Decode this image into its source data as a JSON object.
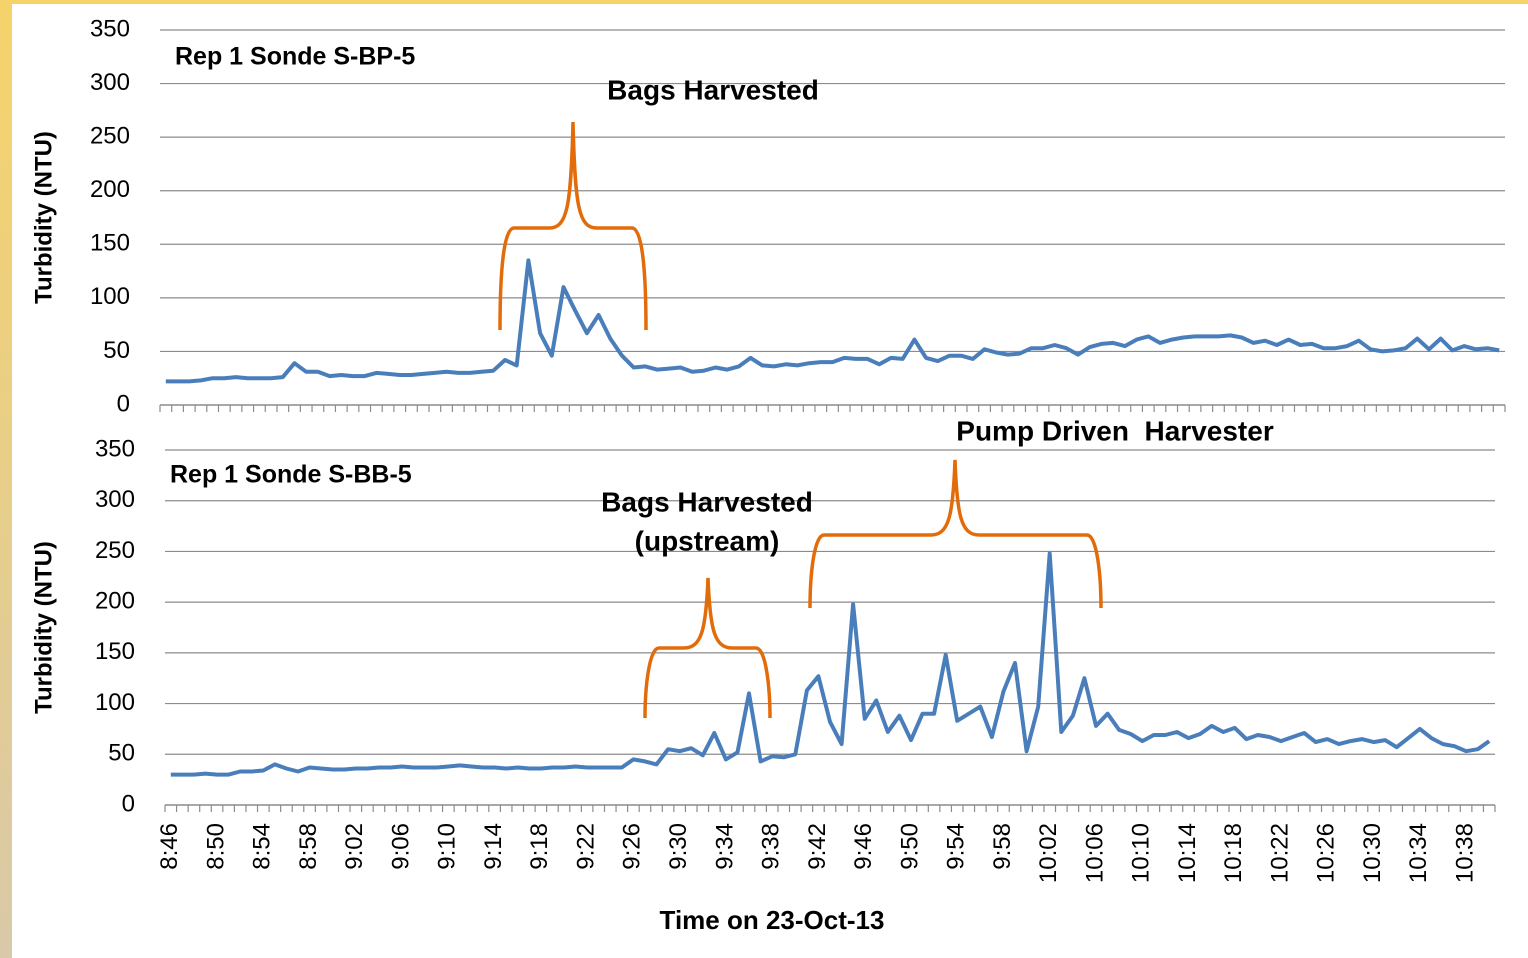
{
  "chart_data": [
    {
      "type": "line",
      "title": "Rep 1 Sonde S-BP-5",
      "y_label": "Turbidity (NTU)",
      "annotations": [
        "Bags Harvested"
      ],
      "ylim": [
        0,
        350
      ],
      "yticks": [
        0,
        50,
        100,
        150,
        200,
        250,
        300,
        350
      ],
      "grid": true,
      "series": [
        {
          "name": "Rep 1 Sonde S-BP-5",
          "color": "#4a7ebb",
          "values": [
            22,
            22,
            22,
            23,
            25,
            25,
            26,
            25,
            25,
            25,
            26,
            39,
            31,
            31,
            27,
            28,
            27,
            27,
            30,
            29,
            28,
            28,
            29,
            30,
            31,
            30,
            30,
            31,
            32,
            42,
            37,
            135,
            67,
            46,
            110,
            88,
            67,
            84,
            62,
            46,
            35,
            36,
            33,
            34,
            35,
            31,
            32,
            35,
            33,
            36,
            44,
            37,
            36,
            38,
            37,
            39,
            40,
            40,
            44,
            43,
            43,
            38,
            44,
            43,
            61,
            44,
            41,
            46,
            46,
            43,
            52,
            49,
            47,
            48,
            53,
            53,
            56,
            53,
            47,
            54,
            57,
            58,
            55,
            61,
            64,
            58,
            61,
            63,
            64,
            64,
            64,
            65,
            63,
            58,
            60,
            56,
            61,
            56,
            57,
            53,
            53,
            55,
            60,
            52,
            50,
            51,
            53,
            62,
            52,
            62,
            51,
            55,
            52,
            53,
            51
          ]
        }
      ]
    },
    {
      "type": "line",
      "title": "Rep 1 Sonde S-BB-5",
      "y_label": "Turbidity (NTU)",
      "x_label": "Time on 23-Oct-13",
      "annotations": [
        "Bags Harvested",
        "(upstream)",
        "Pump Driven  Harvester"
      ],
      "ylim": [
        0,
        350
      ],
      "yticks": [
        0,
        50,
        100,
        150,
        200,
        250,
        300,
        350
      ],
      "grid": true,
      "categories": [
        "8:46",
        null,
        null,
        null,
        "8:50",
        null,
        null,
        null,
        "8:54",
        null,
        null,
        null,
        "8:58",
        null,
        null,
        null,
        "9:02",
        null,
        null,
        null,
        "9:06",
        null,
        null,
        null,
        "9:10",
        null,
        null,
        null,
        "9:14",
        null,
        null,
        null,
        "9:18",
        null,
        null,
        null,
        "9:22",
        null,
        null,
        null,
        "9:26",
        null,
        null,
        null,
        "9:30",
        null,
        null,
        null,
        "9:34",
        null,
        null,
        null,
        "9:38",
        null,
        null,
        null,
        "9:42",
        null,
        null,
        null,
        "9:46",
        null,
        null,
        null,
        "9:50",
        null,
        null,
        null,
        "9:54",
        null,
        null,
        null,
        "9:58",
        null,
        null,
        null,
        "10:02",
        null,
        null,
        null,
        "10:06",
        null,
        null,
        null,
        "10:10",
        null,
        null,
        null,
        "10:14",
        null,
        null,
        null,
        "10:18",
        null,
        null,
        null,
        "10:22",
        null,
        null,
        null,
        "10:26",
        null,
        null,
        null,
        "10:30",
        null,
        null,
        null,
        "10:34",
        null,
        null,
        null,
        "10:38",
        null,
        null
      ],
      "series": [
        {
          "name": "Rep 1 Sonde S-BB-5",
          "color": "#4a7ebb",
          "values": [
            30,
            30,
            30,
            31,
            30,
            30,
            33,
            33,
            34,
            40,
            36,
            33,
            37,
            36,
            35,
            35,
            36,
            36,
            37,
            37,
            38,
            37,
            37,
            37,
            38,
            39,
            38,
            37,
            37,
            36,
            37,
            36,
            36,
            37,
            37,
            38,
            37,
            37,
            37,
            37,
            45,
            43,
            40,
            55,
            53,
            56,
            49,
            71,
            45,
            52,
            110,
            43,
            48,
            47,
            50,
            113,
            127,
            82,
            60,
            198,
            85,
            103,
            72,
            88,
            64,
            90,
            90,
            148,
            83,
            90,
            97,
            67,
            112,
            140,
            53,
            97,
            248,
            72,
            88,
            125,
            78,
            90,
            74,
            70,
            63,
            69,
            69,
            72,
            66,
            70,
            78,
            72,
            76,
            65,
            69,
            67,
            63,
            67,
            71,
            62,
            65,
            60,
            63,
            65,
            62,
            64,
            57,
            66,
            75,
            66,
            60,
            58,
            53,
            55,
            63
          ]
        }
      ]
    }
  ]
}
